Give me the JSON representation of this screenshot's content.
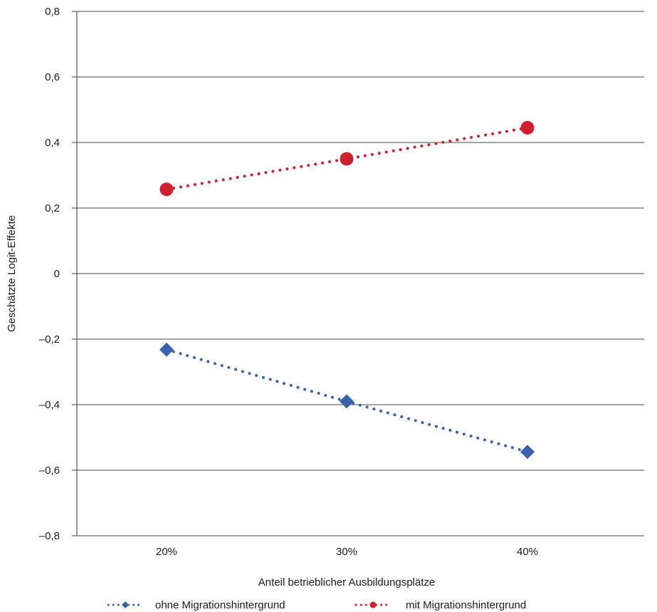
{
  "chart_data": {
    "type": "line",
    "categories": [
      "20%",
      "30%",
      "40%"
    ],
    "ylabel": "Geschätzte Logit-Effekte",
    "xlabel": "Anteil betrieblicher Ausbildungsplätze",
    "ylim": [
      -0.8,
      0.8
    ],
    "yticks": [
      0.8,
      0.6,
      0.4,
      0.2,
      0,
      -0.2,
      -0.4,
      -0.6,
      -0.8
    ],
    "ytick_labels": [
      "0,8",
      "0,6",
      "0,4",
      "0,2",
      "0",
      "–0,2",
      "–0,4",
      "–0,6",
      "–0,8"
    ],
    "grid": "horizontal",
    "legend_position": "bottom",
    "series": [
      {
        "name": "ohne Migrationshintergrund",
        "values": [
          -0.232,
          -0.39,
          -0.544
        ],
        "color": "#3b63ad",
        "marker": "diamond",
        "line_style": "dotted"
      },
      {
        "name": "mit Migrationshintergrund",
        "values": [
          0.257,
          0.35,
          0.445
        ],
        "color": "#d0202e",
        "marker": "circle",
        "line_style": "dotted"
      }
    ]
  }
}
